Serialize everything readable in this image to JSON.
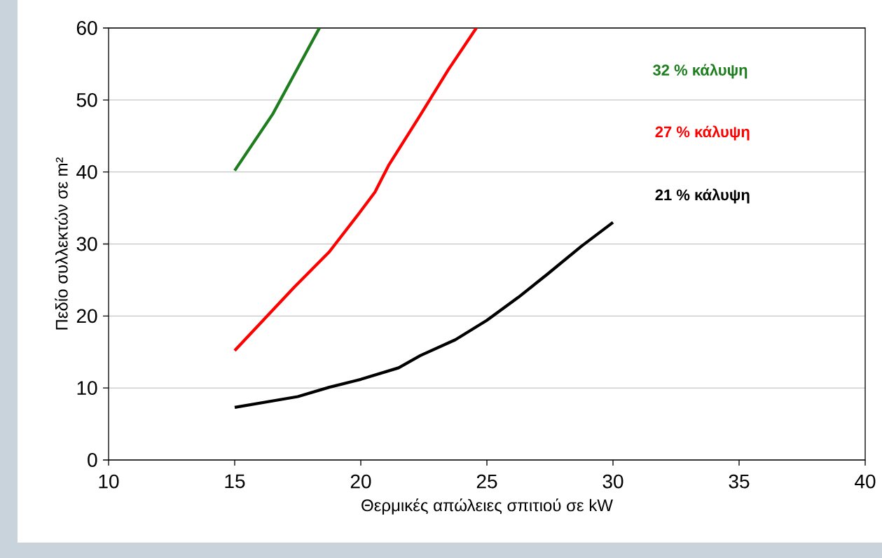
{
  "chart_data": {
    "type": "line",
    "xlabel": "Θερμικές απώλειες σπιτιού σε kW",
    "ylabel": "Πεδίο συλλεκτών σε m²",
    "xlim": [
      10,
      40
    ],
    "ylim": [
      0,
      60
    ],
    "xticks": [
      10,
      15,
      20,
      25,
      30,
      35,
      40
    ],
    "yticks": [
      0,
      10,
      20,
      30,
      40,
      50,
      60
    ],
    "grid": "y",
    "series": [
      {
        "name": "32 % κάλυψη",
        "color": "#1e7d1e",
        "x": [
          15,
          16.5,
          18.36
        ],
        "values": [
          40.2,
          48,
          60
        ]
      },
      {
        "name": "27 % κάλυψη",
        "color": "#ff0000",
        "x": [
          15,
          17.36,
          18.75,
          19.92,
          20.56,
          21.1,
          22.36,
          23.47,
          24.58
        ],
        "values": [
          15.2,
          24,
          28.9,
          34.2,
          37.2,
          40.9,
          47.9,
          54.2,
          60
        ]
      },
      {
        "name": "21 % κάλυψη",
        "color": "#000000",
        "x": [
          15,
          17.5,
          18.75,
          20,
          21.5,
          22.36,
          23.75,
          25,
          26.25,
          27.36,
          28.75,
          30
        ],
        "values": [
          7.3,
          8.8,
          10.1,
          11.2,
          12.8,
          14.5,
          16.7,
          19.4,
          22.6,
          25.7,
          29.7,
          33
        ]
      }
    ]
  }
}
